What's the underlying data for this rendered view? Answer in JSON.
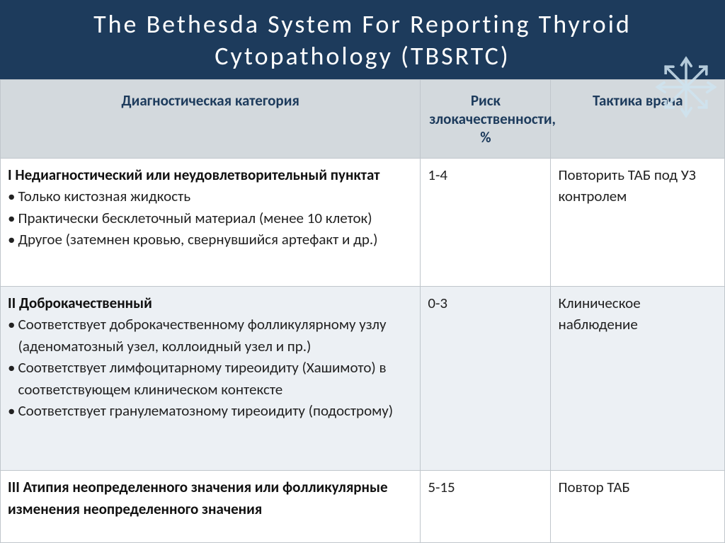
{
  "title": "The Bethesda System For Reporting Thyroid Cytopathology (TBSRTC)",
  "columns": {
    "category": "Диагностическая категория",
    "risk": "Риск злокачественности, %",
    "tactic": "Тактика врача"
  },
  "col_widths": {
    "category": "58%",
    "risk": "18%",
    "tactic": "24%"
  },
  "rows": [
    {
      "row_bg": "white",
      "head": "I Недиагностический или неудовлетворительный пунктат",
      "bullets": [
        "Только кистозная жидкость",
        "Практически бесклеточный материал (менее 10 клеток)",
        "Другое (затемнен кровью, свернувшийся артефакт и др.)"
      ],
      "risk": "1-4",
      "tactic": "Повторить ТАБ под УЗ контролем"
    },
    {
      "row_bg": "blue",
      "head": "II Доброкачественный",
      "bullets": [
        "Соответствует доброкачественному фолликулярному узлу  (аденоматозный узел, коллоидный узел и пр.)",
        " Соответствует лимфоцитарному тиреоидиту (Хашимото) в соответствующем клиническом контексте",
        "Соответствует гранулематозному тиреоидиту (подострому)"
      ],
      "risk": "0-3",
      "tactic": "Клиническое наблюдение"
    },
    {
      "row_bg": "white",
      "head": "III Атипия неопределенного значения или фолликулярные изменения неопределенного значения",
      "bullets": [],
      "risk": " 5-15",
      "tactic": "Повтор ТАБ"
    }
  ],
  "style": {
    "title_bg": "#1d3b5c",
    "title_color": "#ffffff",
    "title_fontsize": 36,
    "header_bg": "#d3d9dd",
    "header_color": "#1d3b5c",
    "row_white": "#ffffff",
    "row_blue": "#ecf0f4",
    "border_color": "#c0c6cc",
    "body_fontsize": 21,
    "snowflake_color": "#cfe4f0"
  }
}
